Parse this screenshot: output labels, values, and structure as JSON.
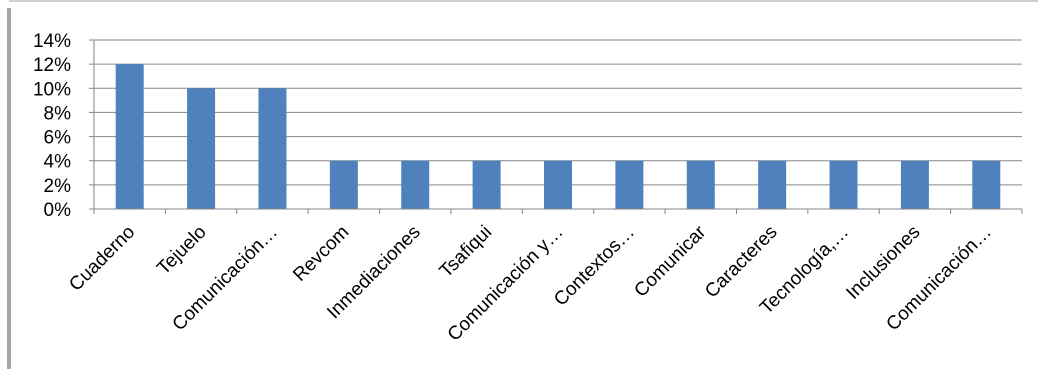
{
  "chart_data": {
    "type": "bar",
    "categories": [
      "Cuaderno",
      "Tejuelo",
      "Comunicación…",
      "Revcom",
      "Inmediaciones",
      "Tsafiqui",
      "Comunicación y…",
      "Contextos…",
      "Comunicar",
      "Caracteres",
      "Tecnología,…",
      "Inclusiones",
      "Comunicación…"
    ],
    "values": [
      12,
      10,
      10,
      4,
      4,
      4,
      4,
      4,
      4,
      4,
      4,
      4,
      4
    ],
    "yticks": [
      "0%",
      "2%",
      "4%",
      "6%",
      "8%",
      "10%",
      "12%",
      "14%"
    ],
    "ylim": [
      0,
      14
    ],
    "unit": "%",
    "grid": true,
    "legend": "none",
    "bar_color": "#4f81bd",
    "grid_color": "#868686",
    "frame_color": "#a6a6a6"
  }
}
